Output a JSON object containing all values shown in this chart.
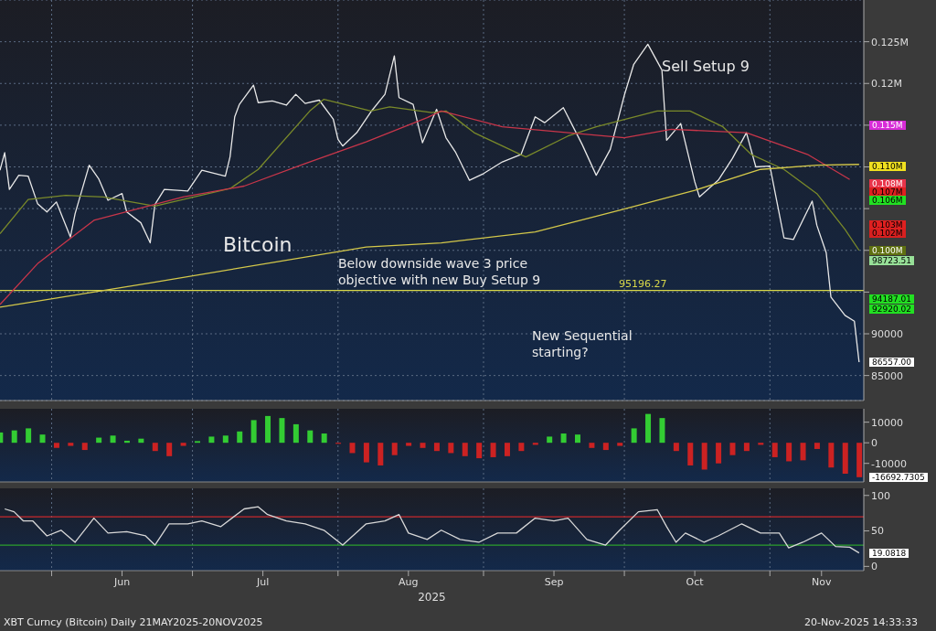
{
  "chart_data": [
    {
      "type": "line",
      "xlim": [
        "2025-05-21",
        "2025-11-21"
      ],
      "xticks": [
        {
          "value": "2025-06-01",
          "label": null
        },
        {
          "value": "2025-07-01",
          "label": null
        },
        {
          "value": "2025-08-01",
          "label": null
        },
        {
          "value": "2025-09-01",
          "label": null
        },
        {
          "value": "2025-10-01",
          "label": null
        },
        {
          "value": "2025-11-01",
          "label": null
        }
      ],
      "ylim": [
        82000,
        130000
      ],
      "yticks": [
        85000,
        90000,
        {
          "value": 95000,
          "label": null
        },
        {
          "value": 100000,
          "label": null
        },
        {
          "value": 105000,
          "label": null
        },
        {
          "value": 110000,
          "label": null
        },
        {
          "value": 115000,
          "label": null
        },
        {
          "value": 120000,
          "label": "0.12M"
        },
        {
          "value": 125000,
          "label": "0.125M"
        }
      ],
      "grid": true,
      "tick_labels": "y",
      "series": [
        {
          "color": "#e8e8e8",
          "x": [
            "2025-05-21",
            "2025-05-22",
            "2025-05-23",
            "2025-05-25",
            "2025-05-27",
            "2025-05-29",
            "2025-05-31",
            "2025-06-02",
            "2025-06-05",
            "2025-06-06",
            "2025-06-09",
            "2025-06-11",
            "2025-06-13",
            "2025-06-16",
            "2025-06-17",
            "2025-06-20",
            "2025-06-22",
            "2025-06-23",
            "2025-06-25",
            "2025-06-30",
            "2025-07-03",
            "2025-07-08",
            "2025-07-09",
            "2025-07-10",
            "2025-07-11",
            "2025-07-14",
            "2025-07-15",
            "2025-07-18",
            "2025-07-21",
            "2025-07-23",
            "2025-07-25",
            "2025-07-28",
            "2025-07-31",
            "2025-08-01",
            "2025-08-02",
            "2025-08-05",
            "2025-08-08",
            "2025-08-11",
            "2025-08-13",
            "2025-08-14",
            "2025-08-17",
            "2025-08-19",
            "2025-08-22",
            "2025-08-24",
            "2025-08-26",
            "2025-08-29",
            "2025-09-01",
            "2025-09-05",
            "2025-09-09",
            "2025-09-12",
            "2025-09-14",
            "2025-09-18",
            "2025-09-22",
            "2025-09-25",
            "2025-09-28",
            "2025-10-01",
            "2025-10-03",
            "2025-10-06",
            "2025-10-09",
            "2025-10-10",
            "2025-10-13",
            "2025-10-16",
            "2025-10-17",
            "2025-10-21",
            "2025-10-24",
            "2025-10-27",
            "2025-10-29",
            "2025-11-01",
            "2025-11-04",
            "2025-11-06",
            "2025-11-10",
            "2025-11-11",
            "2025-11-13",
            "2025-11-14",
            "2025-11-17",
            "2025-11-19",
            "2025-11-20"
          ],
          "values": [
            109600,
            111700,
            107300,
            109000,
            108900,
            105600,
            104600,
            105800,
            101600,
            104400,
            110200,
            108600,
            106000,
            106800,
            104600,
            103300,
            100900,
            105500,
            107300,
            107100,
            109600,
            108900,
            111200,
            116000,
            117500,
            119800,
            117700,
            117900,
            117400,
            118700,
            117600,
            118000,
            115700,
            113300,
            112500,
            114100,
            116600,
            118700,
            123300,
            118300,
            117500,
            112900,
            116900,
            113500,
            111800,
            108400,
            109200,
            110600,
            111500,
            116000,
            115300,
            117100,
            112700,
            109000,
            112100,
            118600,
            122300,
            124700,
            121600,
            113200,
            115200,
            108200,
            106400,
            108400,
            111000,
            114100,
            110000,
            110100,
            101500,
            101300,
            105900,
            103000,
            99700,
            94400,
            92200,
            91500,
            86600
          ]
        },
        {
          "color": "#7a8a2a",
          "x": [
            "2025-05-21",
            "2025-05-27",
            "2025-06-04",
            "2025-06-12",
            "2025-06-23",
            "2025-07-09",
            "2025-07-15",
            "2025-07-26",
            "2025-07-29",
            "2025-08-08",
            "2025-08-12",
            "2025-08-21",
            "2025-08-24",
            "2025-08-30",
            "2025-09-10",
            "2025-09-19",
            "2025-09-25",
            "2025-10-08",
            "2025-10-15",
            "2025-10-22",
            "2025-10-28",
            "2025-11-04",
            "2025-11-11",
            "2025-11-17",
            "2025-11-20"
          ],
          "values": [
            102000,
            106100,
            106600,
            106400,
            105300,
            107400,
            109700,
            116700,
            118100,
            116700,
            117200,
            116500,
            116700,
            114100,
            111200,
            113700,
            114800,
            116700,
            116700,
            114800,
            111500,
            109700,
            106800,
            102500,
            100000
          ]
        },
        {
          "color": "#c8364a",
          "x": [
            "2025-05-21",
            "2025-05-29",
            "2025-06-10",
            "2025-06-29",
            "2025-07-12",
            "2025-07-25",
            "2025-08-07",
            "2025-08-20",
            "2025-08-23",
            "2025-09-05",
            "2025-10-01",
            "2025-10-11",
            "2025-10-27",
            "2025-11-09",
            "2025-11-18"
          ],
          "values": [
            93500,
            98400,
            103600,
            106400,
            107700,
            110400,
            113000,
            115900,
            116700,
            114800,
            113500,
            114500,
            114100,
            111500,
            108500
          ]
        },
        {
          "color": "#d4c84a",
          "x": [
            "2025-05-21",
            "2025-06-22",
            "2025-08-07",
            "2025-08-23",
            "2025-09-12",
            "2025-09-30",
            "2025-10-16",
            "2025-10-30",
            "2025-11-11",
            "2025-11-20"
          ],
          "values": [
            93200,
            96100,
            100400,
            100900,
            102200,
            104800,
            107200,
            109700,
            110200,
            110300
          ]
        }
      ],
      "ref_lines": [
        {
          "axis": "y",
          "value": 95196.27,
          "label": "95196.27",
          "color": "#d8d84a"
        }
      ],
      "annotations": [
        "Bitcoin",
        "Sell Setup 9",
        "Below downside wave 3 price objective with new Buy Setup 9",
        "New Sequential starting?",
        "0.115M",
        "0.110M",
        "0.108M",
        "0.107M",
        "0.106M",
        "0.103M",
        "0.102M",
        "0.100M",
        "98723.51",
        "94187.01",
        "92920.02",
        "86557.00"
      ]
    },
    {
      "type": "bar",
      "xlim": [
        "2025-05-21",
        "2025-11-21"
      ],
      "xticks": [
        {
          "value": "2025-06-01",
          "label": null
        },
        {
          "value": "2025-07-01",
          "label": null
        },
        {
          "value": "2025-08-01",
          "label": null
        },
        {
          "value": "2025-09-01",
          "label": null
        },
        {
          "value": "2025-10-01",
          "label": null
        },
        {
          "value": "2025-11-01",
          "label": null
        }
      ],
      "ylim": [
        -19000,
        16500
      ],
      "yticks": [
        -10000,
        0,
        10000
      ],
      "grid": "x",
      "tick_labels": "y",
      "x": [
        "2025-05-21",
        "2025-05-24",
        "2025-05-27",
        "2025-05-30",
        "2025-06-02",
        "2025-06-05",
        "2025-06-08",
        "2025-06-11",
        "2025-06-14",
        "2025-06-17",
        "2025-06-20",
        "2025-06-23",
        "2025-06-26",
        "2025-06-29",
        "2025-07-02",
        "2025-07-05",
        "2025-07-08",
        "2025-07-11",
        "2025-07-14",
        "2025-07-17",
        "2025-07-20",
        "2025-07-23",
        "2025-07-26",
        "2025-07-29",
        "2025-08-01",
        "2025-08-04",
        "2025-08-07",
        "2025-08-10",
        "2025-08-13",
        "2025-08-16",
        "2025-08-19",
        "2025-08-22",
        "2025-08-25",
        "2025-08-28",
        "2025-08-31",
        "2025-09-03",
        "2025-09-06",
        "2025-09-09",
        "2025-09-12",
        "2025-09-15",
        "2025-09-18",
        "2025-09-21",
        "2025-09-24",
        "2025-09-27",
        "2025-09-30",
        "2025-10-03",
        "2025-10-06",
        "2025-10-09",
        "2025-10-12",
        "2025-10-15",
        "2025-10-18",
        "2025-10-21",
        "2025-10-24",
        "2025-10-27",
        "2025-10-30",
        "2025-11-02",
        "2025-11-05",
        "2025-11-08",
        "2025-11-11",
        "2025-11-14",
        "2025-11-17",
        "2025-11-20"
      ],
      "values": [
        5000,
        6000,
        7000,
        4000,
        -2500,
        -1500,
        -3500,
        2500,
        3500,
        1000,
        2000,
        -4000,
        -6500,
        -1500,
        800,
        3000,
        3500,
        5500,
        11000,
        13000,
        12000,
        9000,
        6000,
        4500,
        -500,
        -5000,
        -9500,
        -11000,
        -6000,
        -1500,
        -2500,
        -4000,
        -5000,
        -6500,
        -7500,
        -7000,
        -6500,
        -4000,
        -1000,
        3000,
        4500,
        4000,
        -2500,
        -3500,
        -1500,
        7000,
        14000,
        12000,
        -4000,
        -11000,
        -13000,
        -10000,
        -6000,
        -4000,
        -1000,
        -7000,
        -9000,
        -8500,
        -3000,
        -12000,
        -15000,
        -16700
      ],
      "colors": [
        "#33cc33",
        "#33cc33",
        "#33cc33",
        "#33cc33",
        "#cc2222",
        "#cc2222",
        "#cc2222",
        "#33cc33",
        "#33cc33",
        "#33cc33",
        "#33cc33",
        "#cc2222",
        "#cc2222",
        "#cc2222",
        "#33cc33",
        "#33cc33",
        "#33cc33",
        "#33cc33",
        "#33cc33",
        "#33cc33",
        "#33cc33",
        "#33cc33",
        "#33cc33",
        "#33cc33",
        "#cc2222",
        "#cc2222",
        "#cc2222",
        "#cc2222",
        "#cc2222",
        "#cc2222",
        "#cc2222",
        "#cc2222",
        "#cc2222",
        "#cc2222",
        "#cc2222",
        "#cc2222",
        "#cc2222",
        "#cc2222",
        "#cc2222",
        "#33cc33",
        "#33cc33",
        "#33cc33",
        "#cc2222",
        "#cc2222",
        "#cc2222",
        "#33cc33",
        "#33cc33",
        "#33cc33",
        "#cc2222",
        "#cc2222",
        "#cc2222",
        "#cc2222",
        "#cc2222",
        "#cc2222",
        "#cc2222",
        "#cc2222",
        "#cc2222",
        "#cc2222",
        "#cc2222",
        "#cc2222",
        "#cc2222",
        "#cc2222"
      ],
      "annotations": [
        "-16692.7305"
      ]
    },
    {
      "type": "line",
      "xlim": [
        "2025-05-21",
        "2025-11-21"
      ],
      "xticks": [
        {
          "value": "2025-06-01",
          "label": null
        },
        {
          "value": "2025-07-01",
          "label": null
        },
        {
          "value": "2025-08-01",
          "label": null
        },
        {
          "value": "2025-09-01",
          "label": null
        },
        {
          "value": "2025-10-01",
          "label": null
        },
        {
          "value": "2025-11-01",
          "label": null
        },
        {
          "value": "2025-06-16",
          "label": "Jun"
        },
        {
          "value": "2025-07-16",
          "label": "Jul"
        },
        {
          "value": "2025-08-16",
          "label": "Aug"
        },
        {
          "value": "2025-09-16",
          "label": "Sep"
        },
        {
          "value": "2025-10-16",
          "label": "Oct"
        },
        {
          "value": "2025-11-12",
          "label": "Nov"
        }
      ],
      "ylim": [
        -6,
        110
      ],
      "yticks": [
        0,
        50,
        100
      ],
      "grid": "x",
      "xlabel": "2025",
      "color": "#d8d8d8",
      "x": [
        "2025-05-22",
        "2025-05-24",
        "2025-05-26",
        "2025-05-28",
        "2025-05-31",
        "2025-06-03",
        "2025-06-06",
        "2025-06-10",
        "2025-06-13",
        "2025-06-17",
        "2025-06-21",
        "2025-06-23",
        "2025-06-26",
        "2025-06-30",
        "2025-07-03",
        "2025-07-07",
        "2025-07-12",
        "2025-07-15",
        "2025-07-17",
        "2025-07-21",
        "2025-07-25",
        "2025-07-29",
        "2025-08-02",
        "2025-08-07",
        "2025-08-11",
        "2025-08-14",
        "2025-08-16",
        "2025-08-20",
        "2025-08-23",
        "2025-08-27",
        "2025-08-31",
        "2025-09-04",
        "2025-09-08",
        "2025-09-12",
        "2025-09-16",
        "2025-09-19",
        "2025-09-23",
        "2025-09-27",
        "2025-09-30",
        "2025-10-04",
        "2025-10-08",
        "2025-10-10",
        "2025-10-12",
        "2025-10-14",
        "2025-10-18",
        "2025-10-21",
        "2025-10-26",
        "2025-10-30",
        "2025-11-03",
        "2025-11-05",
        "2025-11-08",
        "2025-11-12",
        "2025-11-15",
        "2025-11-18",
        "2025-11-20"
      ],
      "values": [
        81,
        77,
        64,
        64,
        43,
        51,
        34,
        68,
        47,
        49,
        43,
        30,
        60,
        60,
        64,
        56,
        81,
        84,
        73,
        64,
        60,
        51,
        30,
        60,
        64,
        73,
        47,
        38,
        51,
        38,
        34,
        47,
        47,
        68,
        64,
        68,
        38,
        30,
        51,
        77,
        80,
        56,
        34,
        47,
        34,
        43,
        60,
        47,
        47,
        26,
        34,
        47,
        28,
        27,
        19
      ],
      "ref_lines": [
        {
          "axis": "y",
          "value": 70,
          "color": "#c8282c"
        },
        {
          "axis": "y",
          "value": 30,
          "color": "#2ca02c"
        }
      ],
      "annotations": [
        "XBT Curncy (Bitcoin) Daily 21MAY2025-20NOV2025",
        "20-Nov-2025 14:33:33",
        "19.0818"
      ]
    }
  ]
}
